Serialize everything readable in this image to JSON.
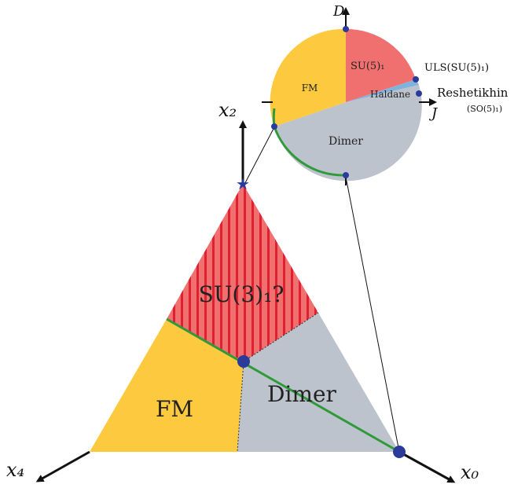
{
  "triangle": {
    "regions": {
      "su3": "SU(3)₁?",
      "fm": "FM",
      "dimer": "Dimer"
    },
    "axes": {
      "x2": "x₂",
      "x4": "x₄",
      "x0": "x₀"
    }
  },
  "circle": {
    "axes": {
      "D": "D",
      "J": "J"
    },
    "regions": {
      "su5": "SU(5)₁",
      "fm": "FM",
      "haldane": "Haldane",
      "dimer": "Dimer"
    },
    "annotations": {
      "uls": "ULS(SU(5)₁)",
      "reshetikhin": "Reshetikhin",
      "so5": "(SO(5)₁)"
    }
  },
  "colors": {
    "su_red": "#f07070",
    "stripe_red": "#e02030",
    "fm_yellow": "#fcc93f",
    "dimer_gray": "#bcc3cc",
    "haldane_blue": "#7fb3dd",
    "green_line": "#2e9a3a",
    "marker_blue": "#2b3b9a"
  }
}
